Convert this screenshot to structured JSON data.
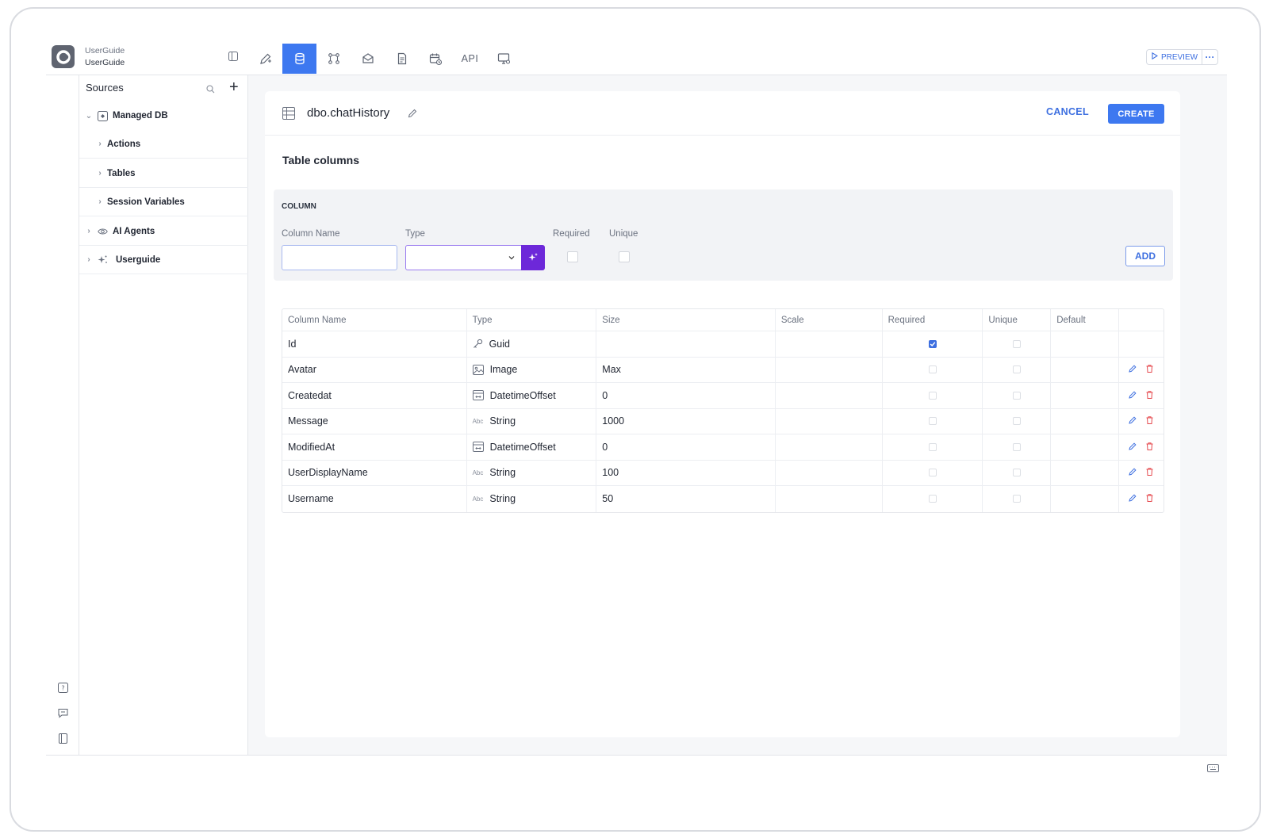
{
  "project": {
    "workspace": "UserGuide",
    "app": "UserGuide"
  },
  "toolbar": {
    "tabs": [
      "design-pen-icon",
      "database-icon",
      "workflow-icon",
      "mail-icon",
      "document-icon",
      "calendar-icon",
      "API",
      "monitor-icon"
    ],
    "active_tab": "database-icon",
    "api_label": "API",
    "preview_label": "PREVIEW",
    "more_label": "···"
  },
  "sources": {
    "title": "Sources",
    "tree": [
      {
        "label": "Managed DB",
        "expanded": true,
        "icon": "db-icon"
      },
      {
        "label": "Actions",
        "level": 1
      },
      {
        "label": "Tables",
        "level": 1
      },
      {
        "label": "Session Variables",
        "level": 1
      },
      {
        "label": "AI Agents",
        "icon": "eye-icon"
      },
      {
        "label": "Userguide",
        "icon": "sparkle-icon"
      }
    ]
  },
  "editor": {
    "table_name": "dbo.chatHistory",
    "cancel_label": "CANCEL",
    "create_label": "CREATE",
    "section_title": "Table columns",
    "new_column": {
      "heading": "COLUMN",
      "name_label": "Column Name",
      "type_label": "Type",
      "required_label": "Required",
      "unique_label": "Unique",
      "name_value": "",
      "type_value": "",
      "add_label": "ADD"
    },
    "columns_table": {
      "headers": [
        "Column Name",
        "Type",
        "Size",
        "Scale",
        "Required",
        "Unique",
        "Default",
        ""
      ],
      "rows": [
        {
          "name": "Id",
          "type": "Guid",
          "type_icon": "key-icon",
          "size": "",
          "scale": "",
          "required": true,
          "unique": false,
          "default": "",
          "editable": false
        },
        {
          "name": "Avatar",
          "type": "Image",
          "type_icon": "image-icon",
          "size": "Max",
          "scale": "",
          "required": false,
          "unique": false,
          "default": "",
          "editable": true
        },
        {
          "name": "Createdat",
          "type": "DatetimeOffset",
          "type_icon": "datetime-icon",
          "size": "0",
          "scale": "",
          "required": false,
          "unique": false,
          "default": "",
          "editable": true
        },
        {
          "name": "Message",
          "type": "String",
          "type_icon": "abc-icon",
          "size": "1000",
          "scale": "",
          "required": false,
          "unique": false,
          "default": "",
          "editable": true
        },
        {
          "name": "ModifiedAt",
          "type": "DatetimeOffset",
          "type_icon": "datetime-icon",
          "size": "0",
          "scale": "",
          "required": false,
          "unique": false,
          "default": "",
          "editable": true
        },
        {
          "name": "UserDisplayName",
          "type": "String",
          "type_icon": "abc-icon",
          "size": "100",
          "scale": "",
          "required": false,
          "unique": false,
          "default": "",
          "editable": true
        },
        {
          "name": "Username",
          "type": "String",
          "type_icon": "abc-icon",
          "size": "50",
          "scale": "",
          "required": false,
          "unique": false,
          "default": "",
          "editable": true
        }
      ]
    }
  },
  "colors": {
    "accent": "#3d78f0",
    "magic": "#6d28d9",
    "danger": "#e5484d"
  }
}
